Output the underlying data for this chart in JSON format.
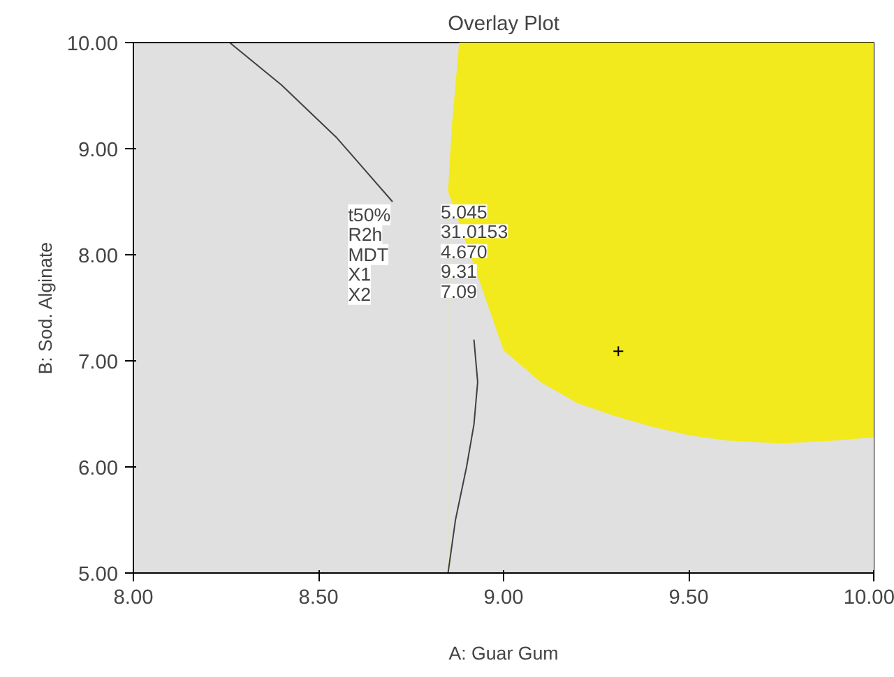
{
  "chart_data": {
    "type": "line",
    "title": "Overlay Plot",
    "xlabel": "A: Guar Gum",
    "ylabel": "B: Sod. Alginate",
    "xlim": [
      8.0,
      10.0
    ],
    "ylim": [
      5.0,
      10.0
    ],
    "xticks": [
      {
        "value": 8.0,
        "label": "8.00"
      },
      {
        "value": 8.5,
        "label": "8.50"
      },
      {
        "value": 9.0,
        "label": "9.00"
      },
      {
        "value": 9.5,
        "label": "9.50"
      },
      {
        "value": 10.0,
        "label": "10.00"
      }
    ],
    "yticks": [
      {
        "value": 5.0,
        "label": "5.00"
      },
      {
        "value": 6.0,
        "label": "6.00"
      },
      {
        "value": 7.0,
        "label": "7.00"
      },
      {
        "value": 8.0,
        "label": "8.00"
      },
      {
        "value": 9.0,
        "label": "9.00"
      },
      {
        "value": 10.0,
        "label": "10.00"
      }
    ],
    "grid": false,
    "marker": "none",
    "line_style": "solid",
    "series": [
      {
        "type": "area",
        "color": "#f2ea1c",
        "x": [
          8.85,
          8.86,
          8.87,
          8.88,
          10.0
        ],
        "values": [
          8.6,
          9.2,
          9.6,
          10.0,
          10.0
        ]
      },
      {
        "type": "area",
        "color": "#e0e0e0",
        "x": [
          8.85,
          9.0,
          9.1,
          9.2,
          9.3,
          9.4,
          9.5,
          9.6,
          9.75,
          9.9,
          10.0
        ],
        "values": [
          8.6,
          7.1,
          6.8,
          6.6,
          6.48,
          6.38,
          6.3,
          6.25,
          6.22,
          6.25,
          6.28
        ]
      },
      {
        "color": "#404040",
        "x": [
          8.26,
          8.4,
          8.55,
          8.7,
          8.8,
          8.87,
          8.92,
          8.93,
          8.92,
          8.9,
          8.87,
          8.85
        ],
        "values": [
          10.0,
          9.6,
          9.1,
          8.5,
          null,
          null,
          7.2,
          6.8,
          6.4,
          6.0,
          5.5,
          5.0
        ]
      },
      {
        "type": "scatter",
        "marker": "cross",
        "color": "#000000",
        "x": [
          9.31
        ],
        "values": [
          7.09
        ]
      }
    ],
    "annotations": [
      "t50%",
      "R2h",
      "MDT",
      "X1",
      "X2",
      "5.045",
      "31.0153",
      "4.670",
      "9.31",
      "7.09"
    ]
  }
}
